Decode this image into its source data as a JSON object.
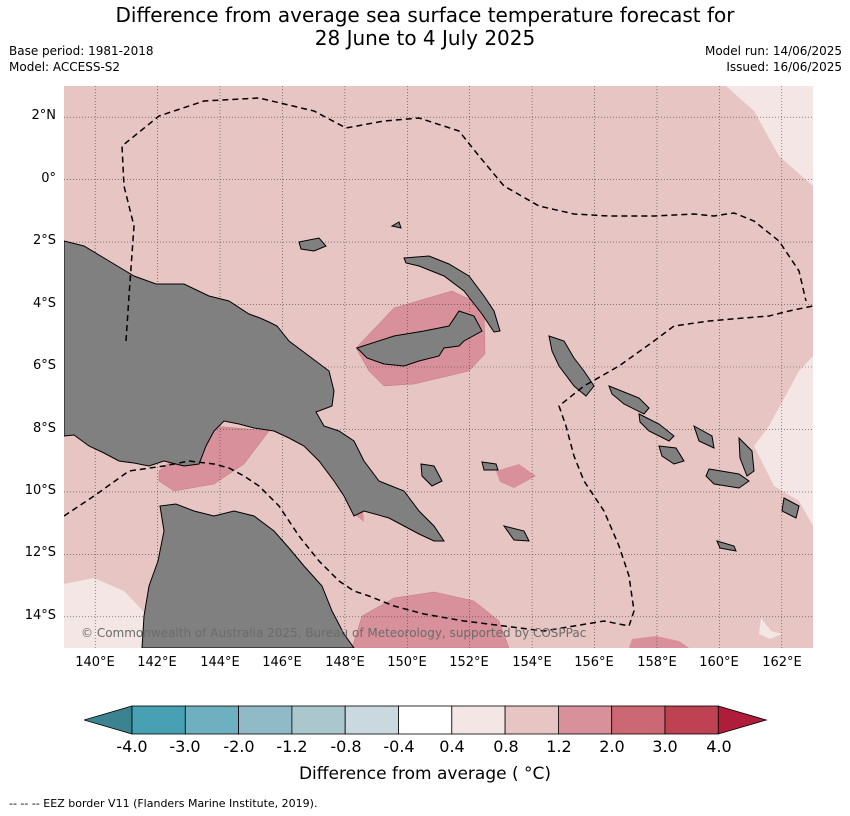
{
  "title_line1": "Difference from average sea surface temperature forecast for",
  "title_line2": "28 June to 4 July 2025",
  "meta_left": {
    "base_period": "Base period: 1981-2018",
    "model": "Model: ACCESS-S2"
  },
  "meta_right": {
    "model_run": "Model run: 14/06/2025",
    "issued": "Issued: 16/06/2025"
  },
  "map": {
    "lon_range": [
      139,
      163
    ],
    "lat_range": [
      -15,
      3
    ],
    "lat_labels": [
      "2°N",
      "0°",
      "2°S",
      "4°S",
      "6°S",
      "8°S",
      "10°S",
      "12°S",
      "14°S"
    ],
    "lat_values": [
      2,
      0,
      -2,
      -4,
      -6,
      -8,
      -10,
      -12,
      -14
    ],
    "lon_labels": [
      "140°E",
      "142°E",
      "144°E",
      "146°E",
      "148°E",
      "150°E",
      "152°E",
      "154°E",
      "156°E",
      "158°E",
      "160°E",
      "162°E"
    ],
    "lon_values": [
      140,
      142,
      144,
      146,
      148,
      150,
      152,
      154,
      156,
      158,
      160,
      162
    ],
    "grid": true,
    "background_anomaly_band": "0.8 to 1.2",
    "copyright": "© Commonwealth of Australia 2025, Bureau of Meteorology, supported by COSPPac"
  },
  "colorbar": {
    "ticks": [
      "-4.0",
      "-3.0",
      "-2.0",
      "-1.2",
      "-0.8",
      "-0.4",
      "0.4",
      "0.8",
      "1.2",
      "2.0",
      "3.0",
      "4.0"
    ],
    "colors": [
      "#47a0b4",
      "#6eb0c0",
      "#8fbac6",
      "#a9c7cc",
      "#c9d9df",
      "#ffffff",
      "#f4e6e4",
      "#e7c5c2",
      "#d8909a",
      "#cc6874",
      "#bf4253"
    ],
    "under_color": "#3b8391",
    "over_color": "#b01d3b",
    "label": "Difference from average ( °C)"
  },
  "footnote": "--  --  -- EEZ border V11 (Flanders Marine Institute, 2019).",
  "colors": {
    "land": "#808080",
    "sea_base": "#e7c5c2",
    "sea_warm": "#d8909a",
    "sea_cool": "#f4e6e4"
  }
}
